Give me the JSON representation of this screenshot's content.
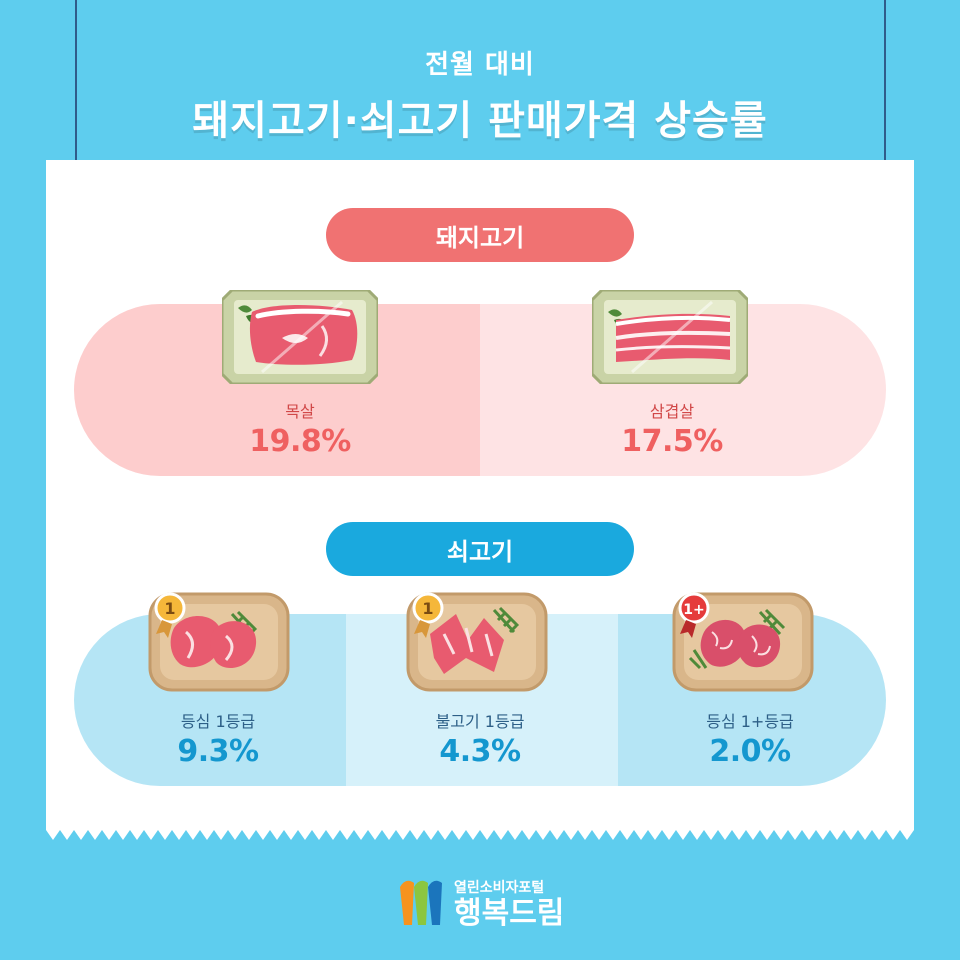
{
  "header": {
    "subtitle": "전월 대비",
    "title": "돼지고기·쇠고기 판매가격 상승률"
  },
  "pork": {
    "category_label": "돼지고기",
    "items": [
      {
        "label": "목살",
        "value": "19.8%"
      },
      {
        "label": "삼겹살",
        "value": "17.5%"
      }
    ]
  },
  "beef": {
    "category_label": "쇠고기",
    "items": [
      {
        "label": "등심 1등급",
        "value": "9.3%",
        "badge": "1"
      },
      {
        "label": "불고기 1등급",
        "value": "4.3%",
        "badge": "1"
      },
      {
        "label": "등심 1+등급",
        "value": "2.0%",
        "badge": "1+"
      }
    ]
  },
  "footer": {
    "logo_small": "열린소비자포털",
    "logo_big": "행복드림"
  },
  "colors": {
    "background": "#5ecdee",
    "pork_accent": "#f07272",
    "beef_accent": "#1aa9de"
  }
}
